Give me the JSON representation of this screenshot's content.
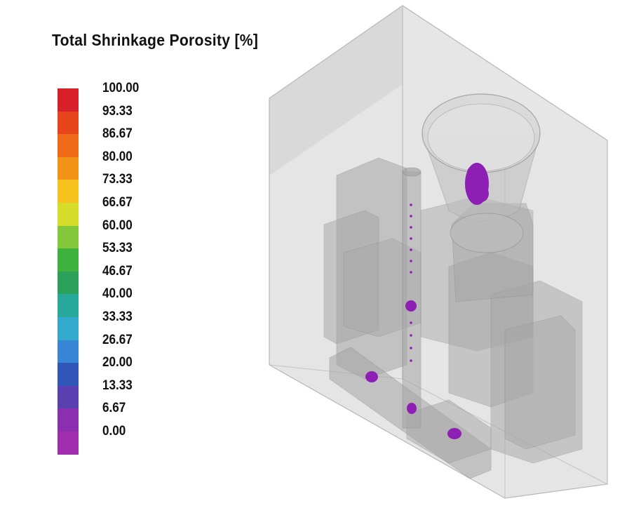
{
  "legend": {
    "title": "Total Shrinkage Porosity [%]",
    "labels": [
      "100.00",
      "93.33",
      "86.67",
      "80.00",
      "73.33",
      "66.67",
      "60.00",
      "53.33",
      "46.67",
      "40.00",
      "33.33",
      "26.67",
      "20.00",
      "13.33",
      "6.67",
      "0.00"
    ],
    "colors": [
      "#d8202a",
      "#e8451c",
      "#ef6a18",
      "#f39418",
      "#f8c21e",
      "#d6dc2a",
      "#82c83a",
      "#3fb23e",
      "#2aa05a",
      "#27a89a",
      "#33aacc",
      "#3a86d6",
      "#2f56b8",
      "#5a3fb0",
      "#8a2fb0",
      "#a02cae"
    ]
  },
  "model": {
    "mold_color": "#c9c9c9",
    "part_color": "#a8a8a8",
    "porosity_color": "#8e1fb4"
  }
}
